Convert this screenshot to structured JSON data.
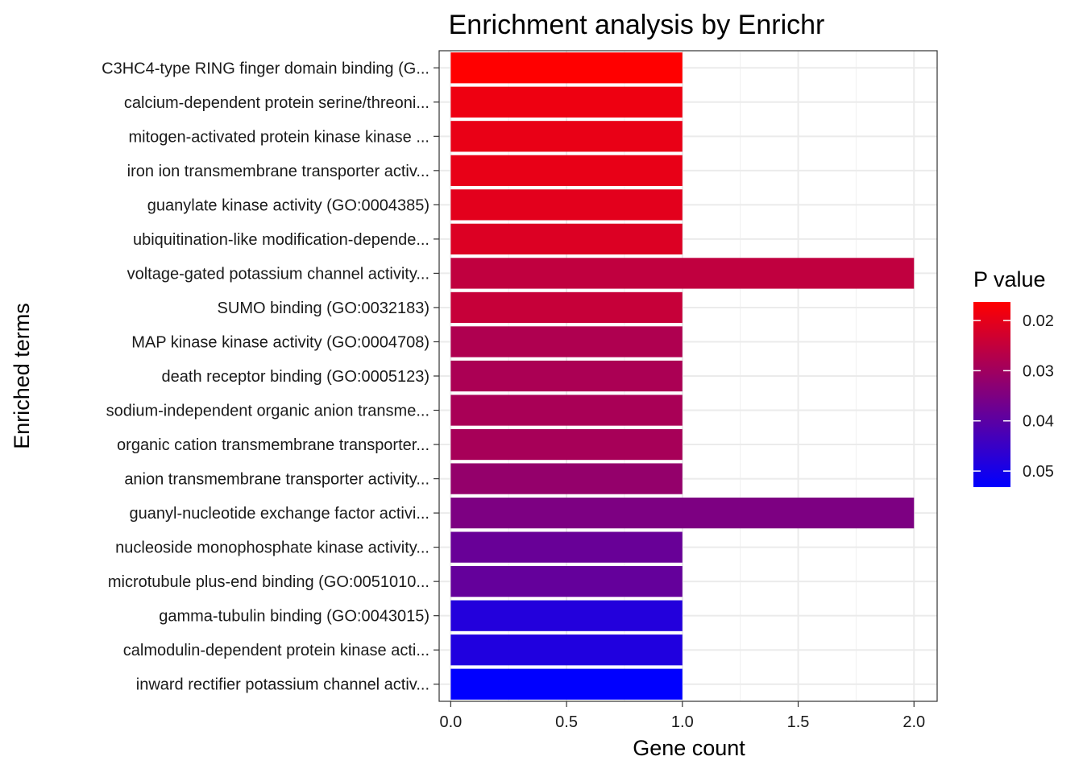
{
  "chart_data": {
    "type": "bar",
    "orientation": "horizontal",
    "title": "Enrichment analysis by Enrichr",
    "xlabel": "Gene count",
    "ylabel": "Enriched terms",
    "xlim": [
      -0.05,
      2.1
    ],
    "x_ticks": [
      0.0,
      0.5,
      1.0,
      1.5,
      2.0
    ],
    "x_tick_labels": [
      "0.0",
      "0.5",
      "1.0",
      "1.5",
      "2.0"
    ],
    "grid": true,
    "categories": [
      "C3HC4-type RING finger domain binding (G...",
      "calcium-dependent protein serine/threoni...",
      "mitogen-activated protein kinase kinase ...",
      "iron ion transmembrane transporter activ...",
      "guanylate kinase activity (GO:0004385)",
      "ubiquitination-like modification-depende...",
      "voltage-gated potassium channel activity...",
      "SUMO binding (GO:0032183)",
      "MAP kinase kinase activity (GO:0004708)",
      "death receptor binding (GO:0005123)",
      "sodium-independent organic anion transme...",
      "organic cation transmembrane transporter...",
      "anion transmembrane transporter activity...",
      "guanyl-nucleotide exchange factor activi...",
      "nucleoside monophosphate kinase activity...",
      "microtubule plus-end binding (GO:0051010...",
      "gamma-tubulin binding (GO:0043015)",
      "calmodulin-dependent protein kinase acti...",
      "inward rectifier potassium channel activ..."
    ],
    "values": [
      1,
      1,
      1,
      1,
      1,
      1,
      2,
      1,
      1,
      1,
      1,
      1,
      1,
      2,
      1,
      1,
      1,
      1,
      1
    ],
    "p_values": [
      0.0163,
      0.0188,
      0.0195,
      0.0196,
      0.0203,
      0.0214,
      0.0254,
      0.0246,
      0.0279,
      0.0285,
      0.0288,
      0.0291,
      0.0318,
      0.0351,
      0.0381,
      0.0388,
      0.0482,
      0.0485,
      0.0532
    ],
    "legend": {
      "title": "P value",
      "position": "right",
      "ticks": [
        0.02,
        0.03,
        0.04,
        0.05
      ],
      "tick_labels": [
        "0.02",
        "0.03",
        "0.04",
        "0.05"
      ],
      "range": [
        0.0163,
        0.0532
      ],
      "low_color": "#FF0000",
      "high_color": "#0000FF"
    }
  }
}
